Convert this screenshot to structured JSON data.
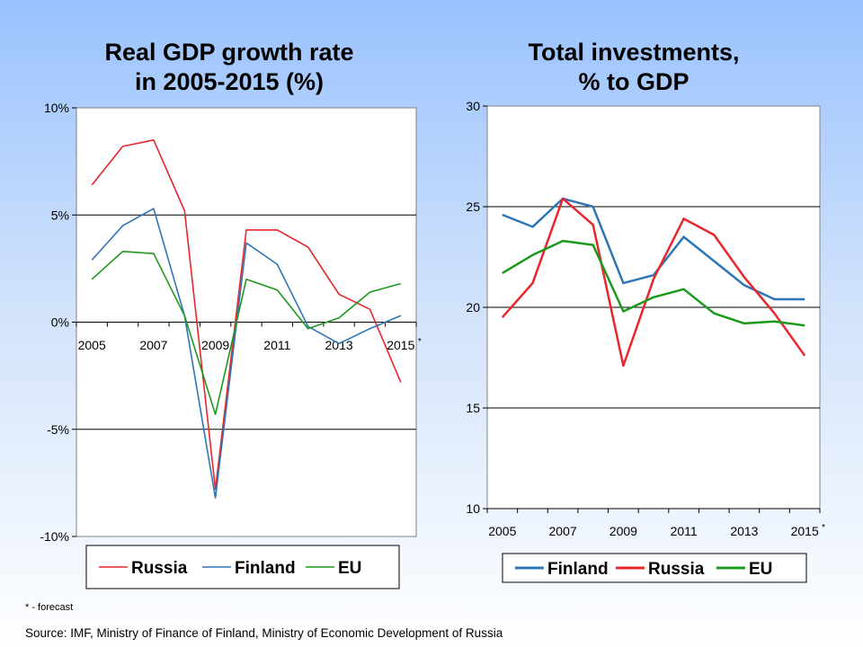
{
  "chart_data": [
    {
      "type": "line",
      "title_line1": "Real GDP growth rate",
      "title_line2": "in 2005-2015 (%)",
      "x": [
        2005,
        2006,
        2007,
        2008,
        2009,
        2010,
        2011,
        2012,
        2013,
        2014,
        2015
      ],
      "x_tick_labels": [
        "2005",
        "2007",
        "2009",
        "2011",
        "2013",
        "2015"
      ],
      "x_tick_suffix": "*",
      "ylim": [
        -10,
        10
      ],
      "y_tick_values": [
        10,
        5,
        0,
        -5,
        -10
      ],
      "y_tick_labels": [
        "10%",
        "5%",
        "0%",
        "-5%",
        "-10%"
      ],
      "grid": true,
      "legend_position": "bottom",
      "series": [
        {
          "name": "Russia",
          "color": "#e8262b",
          "values": [
            6.4,
            8.2,
            8.5,
            5.2,
            -7.8,
            4.3,
            4.3,
            3.5,
            1.3,
            0.6,
            -2.8
          ]
        },
        {
          "name": "Finland",
          "color": "#2e75b6",
          "values": [
            2.9,
            4.5,
            5.3,
            0.3,
            -8.2,
            3.7,
            2.7,
            -0.2,
            -1.0,
            -0.3,
            0.3
          ]
        },
        {
          "name": "EU",
          "color": "#1a9a1a",
          "values": [
            2.0,
            3.3,
            3.2,
            0.3,
            -4.3,
            2.0,
            1.5,
            -0.3,
            0.2,
            1.4,
            1.8
          ]
        }
      ]
    },
    {
      "type": "line",
      "title_line1": "Total investments,",
      "title_line2": "% to GDP",
      "x": [
        2005,
        2006,
        2007,
        2008,
        2009,
        2010,
        2011,
        2012,
        2013,
        2014,
        2015
      ],
      "x_tick_labels": [
        "2005",
        "2007",
        "2009",
        "2011",
        "2013",
        "2015"
      ],
      "x_tick_suffix": "*",
      "ylim": [
        10,
        30
      ],
      "y_tick_values": [
        30,
        25,
        20,
        15,
        10
      ],
      "y_tick_labels": [
        "30",
        "25",
        "20",
        "15",
        "10"
      ],
      "grid": true,
      "legend_position": "bottom",
      "series": [
        {
          "name": "Finland",
          "color": "#2e75b6",
          "values": [
            24.6,
            24.0,
            25.4,
            25.0,
            21.2,
            21.6,
            23.5,
            22.3,
            21.1,
            20.4,
            20.4
          ]
        },
        {
          "name": "Russia",
          "color": "#e8262b",
          "values": [
            19.5,
            21.2,
            25.4,
            24.1,
            17.1,
            21.4,
            24.4,
            23.6,
            21.5,
            19.7,
            17.6
          ]
        },
        {
          "name": "EU",
          "color": "#1a9a1a",
          "values": [
            21.7,
            22.6,
            23.3,
            23.1,
            19.8,
            20.5,
            20.9,
            19.7,
            19.2,
            19.3,
            19.1
          ]
        }
      ]
    }
  ],
  "footnote": "* - forecast",
  "source": "Source: IMF, Ministry of Finance of Finland, Ministry of Economic Development of Russia"
}
